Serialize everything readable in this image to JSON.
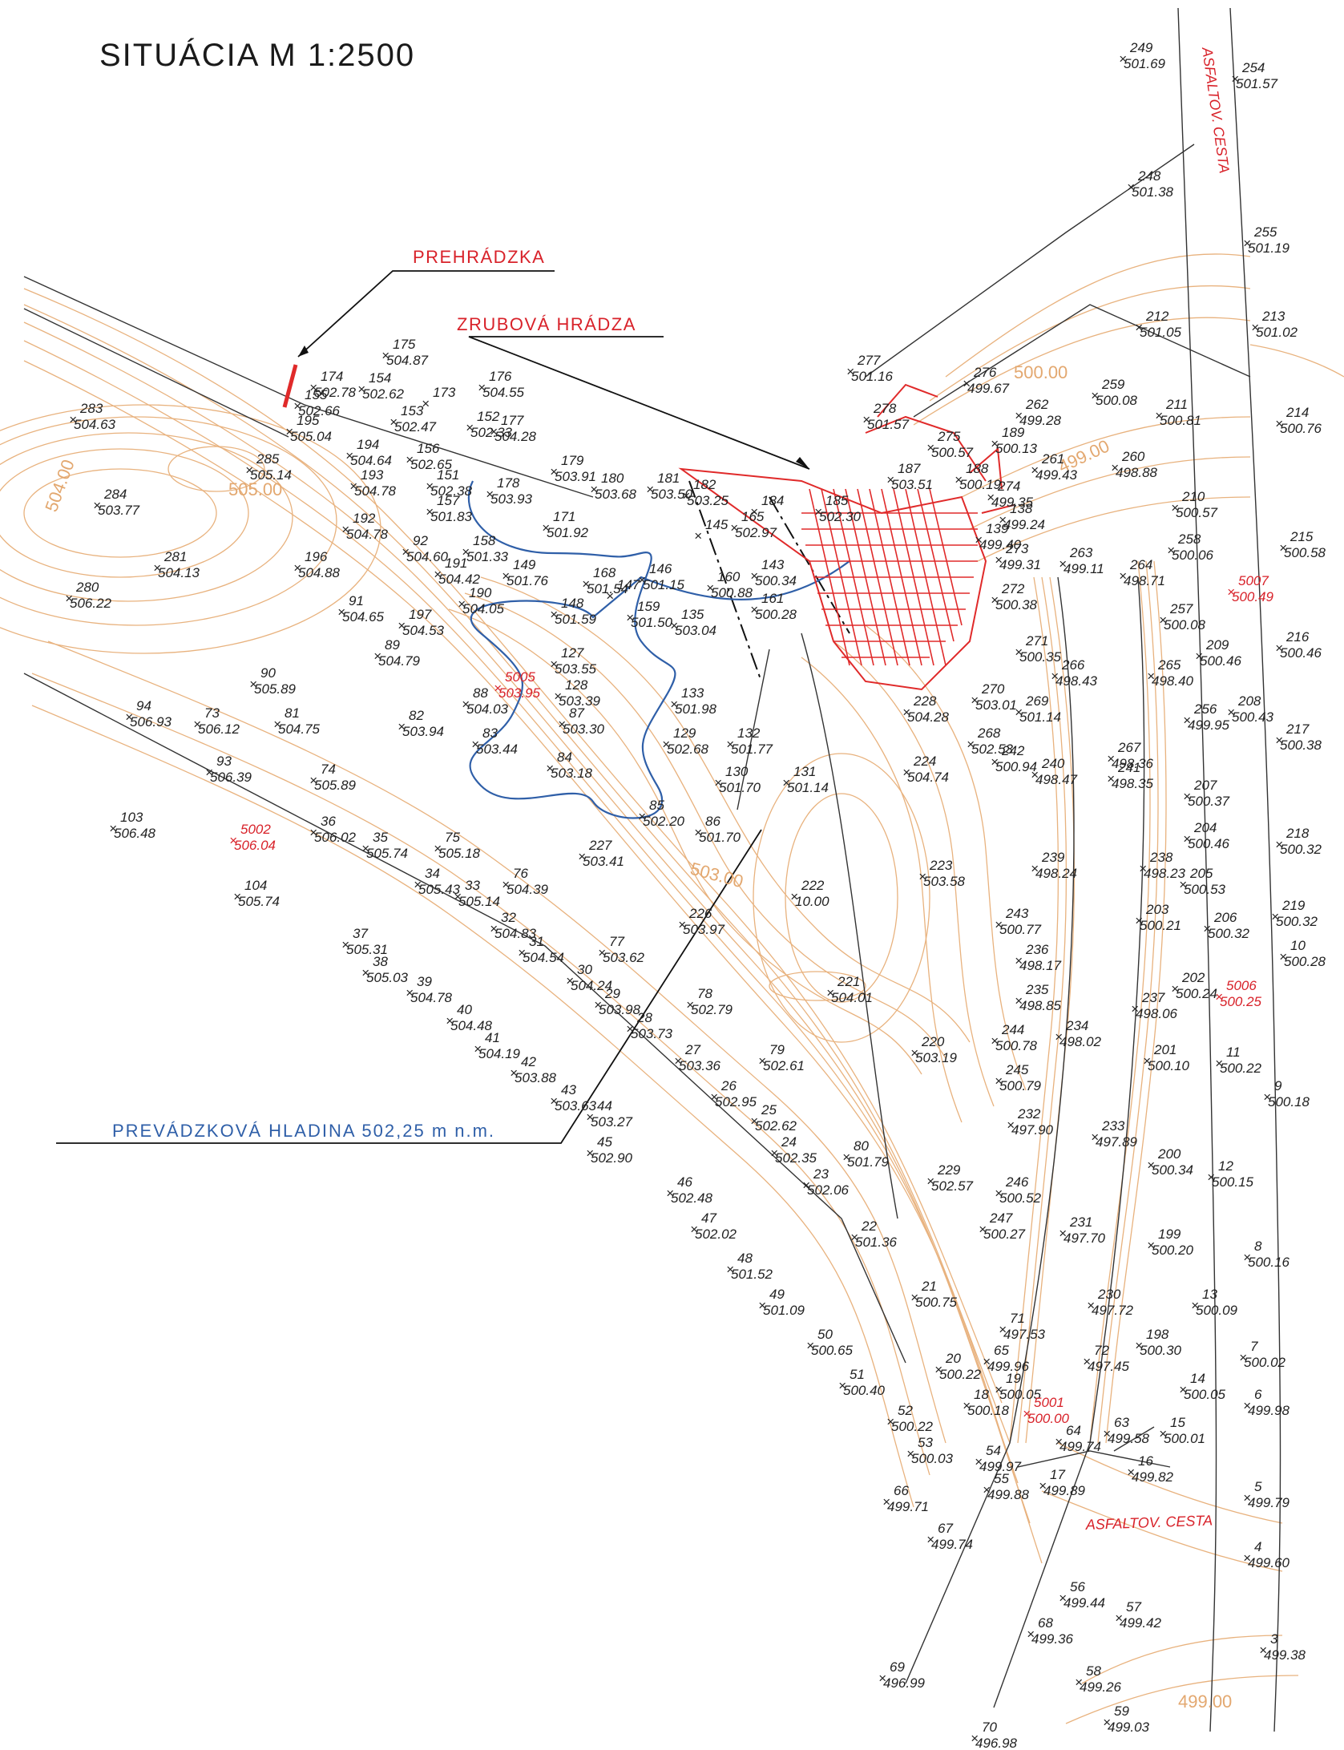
{
  "title": "SITUÁCIA M 1:2500",
  "labels": {
    "weir": "PREHRÁDZKA",
    "log_dam": "ZRUBOVÁ HRÁDZA",
    "water_level": "PREVÁDZKOVÁ HLADINA 502,25 m n.m.",
    "road_top": "ASFALTOV. CESTA",
    "road_bottom": "ASFALTOV. CESTA"
  },
  "contour_labels": [
    "500.00",
    "499.00",
    "505.00",
    "504.00",
    "503.00",
    "499.00"
  ],
  "colors": {
    "contour": "#e8b27e",
    "dam": "#e02a2a",
    "water_line": "#2f5fa8",
    "lines": "#333333",
    "text": "#222222"
  },
  "survey_points": [
    {
      "id": "249",
      "elev": "501.69"
    },
    {
      "id": "254",
      "elev": "501.57"
    },
    {
      "id": "248",
      "elev": "501.38"
    },
    {
      "id": "255",
      "elev": "501.19"
    },
    {
      "id": "212",
      "elev": "501.05"
    },
    {
      "id": "213",
      "elev": "501.02"
    },
    {
      "id": "277",
      "elev": "501.16"
    },
    {
      "id": "276",
      "elev": "499.67"
    },
    {
      "id": "259",
      "elev": "500.08"
    },
    {
      "id": "211",
      "elev": "500.81"
    },
    {
      "id": "214",
      "elev": "500.76"
    },
    {
      "id": "262",
      "elev": "499.28"
    },
    {
      "id": "278",
      "elev": "501.57"
    },
    {
      "id": "275",
      "elev": "500.57"
    },
    {
      "id": "189",
      "elev": "500.13"
    },
    {
      "id": "261",
      "elev": "499.43"
    },
    {
      "id": "260",
      "elev": "498.88"
    },
    {
      "id": "210",
      "elev": "500.57"
    },
    {
      "id": "215",
      "elev": "500.58"
    },
    {
      "id": "258",
      "elev": "500.06"
    },
    {
      "id": "263",
      "elev": "499.11"
    },
    {
      "id": "264",
      "elev": "498.71"
    },
    {
      "id": "272",
      "elev": "500.38"
    },
    {
      "id": "257",
      "elev": "500.08"
    },
    {
      "id": "209",
      "elev": "500.46"
    },
    {
      "id": "216",
      "elev": "500.46"
    },
    {
      "id": "271",
      "elev": "500.35"
    },
    {
      "id": "265",
      "elev": "498.40"
    },
    {
      "id": "266",
      "elev": "498.43"
    },
    {
      "id": "270",
      "elev": "503.01"
    },
    {
      "id": "269",
      "elev": "501.14"
    },
    {
      "id": "256",
      "elev": "499.95"
    },
    {
      "id": "208",
      "elev": "500.43"
    },
    {
      "id": "217",
      "elev": "500.38"
    },
    {
      "id": "228",
      "elev": "504.28"
    },
    {
      "id": "268",
      "elev": "502.53"
    },
    {
      "id": "267",
      "elev": "498.36"
    },
    {
      "id": "241",
      "elev": "498.35"
    },
    {
      "id": "242",
      "elev": "500.94"
    },
    {
      "id": "240",
      "elev": "498.47"
    },
    {
      "id": "207",
      "elev": "500.37"
    },
    {
      "id": "224",
      "elev": "504.74"
    },
    {
      "id": "204",
      "elev": "500.46"
    },
    {
      "id": "218",
      "elev": "500.32"
    },
    {
      "id": "239",
      "elev": "498.24"
    },
    {
      "id": "238",
      "elev": "498.23"
    },
    {
      "id": "205",
      "elev": "500.53"
    },
    {
      "id": "223",
      "elev": "503.58"
    },
    {
      "id": "243",
      "elev": "500.77"
    },
    {
      "id": "203",
      "elev": "500.21"
    },
    {
      "id": "206",
      "elev": "500.32"
    },
    {
      "id": "219",
      "elev": "500.32"
    },
    {
      "id": "10",
      "elev": "500.28"
    },
    {
      "id": "236",
      "elev": "498.17"
    },
    {
      "id": "202",
      "elev": "500.24"
    },
    {
      "id": "235",
      "elev": "498.85"
    },
    {
      "id": "237",
      "elev": "498.06"
    },
    {
      "id": "221",
      "elev": "504.01"
    },
    {
      "id": "244",
      "elev": "500.78"
    },
    {
      "id": "234",
      "elev": "498.02"
    },
    {
      "id": "220",
      "elev": "503.19"
    },
    {
      "id": "201",
      "elev": "500.10"
    },
    {
      "id": "11",
      "elev": "500.22"
    },
    {
      "id": "245",
      "elev": "500.79"
    },
    {
      "id": "9",
      "elev": "500.18"
    },
    {
      "id": "232",
      "elev": "497.90"
    },
    {
      "id": "233",
      "elev": "497.89"
    },
    {
      "id": "200",
      "elev": "500.34"
    },
    {
      "id": "12",
      "elev": "500.15"
    },
    {
      "id": "229",
      "elev": "502.57"
    },
    {
      "id": "246",
      "elev": "500.52"
    },
    {
      "id": "247",
      "elev": "500.27"
    },
    {
      "id": "231",
      "elev": "497.70"
    },
    {
      "id": "199",
      "elev": "500.20"
    },
    {
      "id": "8",
      "elev": "500.16"
    },
    {
      "id": "230",
      "elev": "497.72"
    },
    {
      "id": "13",
      "elev": "500.09"
    },
    {
      "id": "71",
      "elev": "497.53"
    },
    {
      "id": "198",
      "elev": "500.30"
    },
    {
      "id": "72",
      "elev": "497.45"
    },
    {
      "id": "7",
      "elev": "500.02"
    },
    {
      "id": "65",
      "elev": "499.96"
    },
    {
      "id": "19",
      "elev": "500.05"
    },
    {
      "id": "14",
      "elev": "500.05"
    },
    {
      "id": "20",
      "elev": "500.22"
    },
    {
      "id": "18",
      "elev": "500.18"
    },
    {
      "id": "6",
      "elev": "499.98"
    },
    {
      "id": "63",
      "elev": "499.58"
    },
    {
      "id": "15",
      "elev": "500.01"
    },
    {
      "id": "64",
      "elev": "499.74"
    },
    {
      "id": "16",
      "elev": "499.82"
    },
    {
      "id": "17",
      "elev": "499.89"
    },
    {
      "id": "5",
      "elev": "499.79"
    },
    {
      "id": "54",
      "elev": "499.97"
    },
    {
      "id": "55",
      "elev": "499.88"
    },
    {
      "id": "53",
      "elev": "500.03"
    },
    {
      "id": "66",
      "elev": "499.71"
    },
    {
      "id": "67",
      "elev": "499.74"
    },
    {
      "id": "4",
      "elev": "499.60"
    },
    {
      "id": "56",
      "elev": "499.44"
    },
    {
      "id": "57",
      "elev": "499.42"
    },
    {
      "id": "68",
      "elev": "499.36"
    },
    {
      "id": "3",
      "elev": "499.38"
    },
    {
      "id": "58",
      "elev": "499.26"
    },
    {
      "id": "69",
      "elev": "496.99"
    },
    {
      "id": "70",
      "elev": "496.98"
    },
    {
      "id": "59",
      "elev": "499.03"
    },
    {
      "id": "175",
      "elev": "504.87"
    },
    {
      "id": "174",
      "elev": "502.78"
    },
    {
      "id": "154",
      "elev": "502.62"
    },
    {
      "id": "176",
      "elev": "504.55"
    },
    {
      "id": "173",
      "elev": ""
    },
    {
      "id": "155",
      "elev": "502.66"
    },
    {
      "id": "283",
      "elev": "504.63"
    },
    {
      "id": "195",
      "elev": "505.04"
    },
    {
      "id": "153",
      "elev": "502.47"
    },
    {
      "id": "152",
      "elev": "502.33"
    },
    {
      "id": "177",
      "elev": "504.28"
    },
    {
      "id": "285",
      "elev": "505.14"
    },
    {
      "id": "194",
      "elev": "504.64"
    },
    {
      "id": "156",
      "elev": "502.65"
    },
    {
      "id": "179",
      "elev": "503.91"
    },
    {
      "id": "180",
      "elev": "503.68"
    },
    {
      "id": "181",
      "elev": "503.50"
    },
    {
      "id": "193",
      "elev": "504.78"
    },
    {
      "id": "151",
      "elev": "502.38"
    },
    {
      "id": "178",
      "elev": "503.93"
    },
    {
      "id": "284",
      "elev": "503.77"
    },
    {
      "id": "192",
      "elev": "504.78"
    },
    {
      "id": "157",
      "elev": "501.83"
    },
    {
      "id": "171",
      "elev": "501.92"
    },
    {
      "id": "182",
      "elev": "503.25"
    },
    {
      "id": "281",
      "elev": "504.13"
    },
    {
      "id": "196",
      "elev": "504.88"
    },
    {
      "id": "92",
      "elev": "504.60"
    },
    {
      "id": "191",
      "elev": "504.42"
    },
    {
      "id": "158",
      "elev": "501.33"
    },
    {
      "id": "149",
      "elev": "501.76"
    },
    {
      "id": "168",
      "elev": "501.54"
    },
    {
      "id": "147",
      "elev": ""
    },
    {
      "id": "146",
      "elev": "501.15"
    },
    {
      "id": "280",
      "elev": "506.22"
    },
    {
      "id": "91",
      "elev": "504.65"
    },
    {
      "id": "190",
      "elev": "504.05"
    },
    {
      "id": "148",
      "elev": "501.59"
    },
    {
      "id": "159",
      "elev": "501.50"
    },
    {
      "id": "135",
      "elev": "503.04"
    },
    {
      "id": "197",
      "elev": "504.53"
    },
    {
      "id": "161",
      "elev": "500.28"
    },
    {
      "id": "89",
      "elev": "504.79"
    },
    {
      "id": "127",
      "elev": "503.55"
    },
    {
      "id": "90",
      "elev": "505.89"
    },
    {
      "id": "88",
      "elev": "504.03"
    },
    {
      "id": "128",
      "elev": "503.39"
    },
    {
      "id": "133",
      "elev": "501.98"
    },
    {
      "id": "94",
      "elev": "506.93"
    },
    {
      "id": "73",
      "elev": "506.12"
    },
    {
      "id": "81",
      "elev": "504.75"
    },
    {
      "id": "82",
      "elev": "503.94"
    },
    {
      "id": "87",
      "elev": "503.30"
    },
    {
      "id": "83",
      "elev": "503.44"
    },
    {
      "id": "84",
      "elev": "503.18"
    },
    {
      "id": "129",
      "elev": "502.68"
    },
    {
      "id": "132",
      "elev": "501.77"
    },
    {
      "id": "93",
      "elev": "506.39"
    },
    {
      "id": "74",
      "elev": "505.89"
    },
    {
      "id": "130",
      "elev": "501.70"
    },
    {
      "id": "131",
      "elev": "501.14"
    },
    {
      "id": "85",
      "elev": "502.20"
    },
    {
      "id": "86",
      "elev": "501.70"
    },
    {
      "id": "103",
      "elev": "506.48"
    },
    {
      "id": "36",
      "elev": "506.02"
    },
    {
      "id": "35",
      "elev": "505.74"
    },
    {
      "id": "75",
      "elev": "505.18"
    },
    {
      "id": "227",
      "elev": "503.41"
    },
    {
      "id": "104",
      "elev": "505.74"
    },
    {
      "id": "34",
      "elev": "505.43"
    },
    {
      "id": "33",
      "elev": "505.14"
    },
    {
      "id": "76",
      "elev": "504.39"
    },
    {
      "id": "222",
      "elev": "10.00"
    },
    {
      "id": "226",
      "elev": "503.97"
    },
    {
      "id": "32",
      "elev": "504.83"
    },
    {
      "id": "31",
      "elev": "504.54"
    },
    {
      "id": "37",
      "elev": "505.31"
    },
    {
      "id": "77",
      "elev": "503.62"
    },
    {
      "id": "38",
      "elev": "505.03"
    },
    {
      "id": "30",
      "elev": "504.24"
    },
    {
      "id": "39",
      "elev": "504.78"
    },
    {
      "id": "29",
      "elev": "503.98"
    },
    {
      "id": "78",
      "elev": "502.79"
    },
    {
      "id": "40",
      "elev": "504.48"
    },
    {
      "id": "28",
      "elev": "503.73"
    },
    {
      "id": "41",
      "elev": "504.19"
    },
    {
      "id": "27",
      "elev": "503.36"
    },
    {
      "id": "79",
      "elev": "502.61"
    },
    {
      "id": "42",
      "elev": "503.88"
    },
    {
      "id": "26",
      "elev": "502.95"
    },
    {
      "id": "43",
      "elev": "503.63"
    },
    {
      "id": "44",
      "elev": "503.27"
    },
    {
      "id": "25",
      "elev": "502.62"
    },
    {
      "id": "24",
      "elev": "502.35"
    },
    {
      "id": "80",
      "elev": "501.79"
    },
    {
      "id": "45",
      "elev": "502.90"
    },
    {
      "id": "23",
      "elev": "502.06"
    },
    {
      "id": "46",
      "elev": "502.48"
    },
    {
      "id": "47",
      "elev": "502.02"
    },
    {
      "id": "22",
      "elev": "501.36"
    },
    {
      "id": "48",
      "elev": "501.52"
    },
    {
      "id": "49",
      "elev": "501.09"
    },
    {
      "id": "21",
      "elev": "500.75"
    },
    {
      "id": "50",
      "elev": "500.65"
    },
    {
      "id": "51",
      "elev": "500.40"
    },
    {
      "id": "52",
      "elev": "500.22"
    },
    {
      "id": "143",
      "elev": "500.34"
    },
    {
      "id": "160",
      "elev": "500.88"
    },
    {
      "id": "165",
      "elev": "502.97"
    },
    {
      "id": "145",
      "elev": ""
    },
    {
      "id": "184",
      "elev": ""
    },
    {
      "id": "185",
      "elev": "502.30"
    },
    {
      "id": "187",
      "elev": "503.51"
    },
    {
      "id": "188",
      "elev": "500.19"
    },
    {
      "id": "274",
      "elev": "499.35"
    },
    {
      "id": "138",
      "elev": "499.24"
    },
    {
      "id": "139",
      "elev": "499.40"
    },
    {
      "id": "273",
      "elev": "499.31"
    },
    {
      "id": "5005",
      "elev": "503.95"
    },
    {
      "id": "5002",
      "elev": "506.04"
    },
    {
      "id": "5007",
      "elev": "500.49"
    },
    {
      "id": "5006",
      "elev": "500.25"
    },
    {
      "id": "5001",
      "elev": "500.00"
    }
  ]
}
